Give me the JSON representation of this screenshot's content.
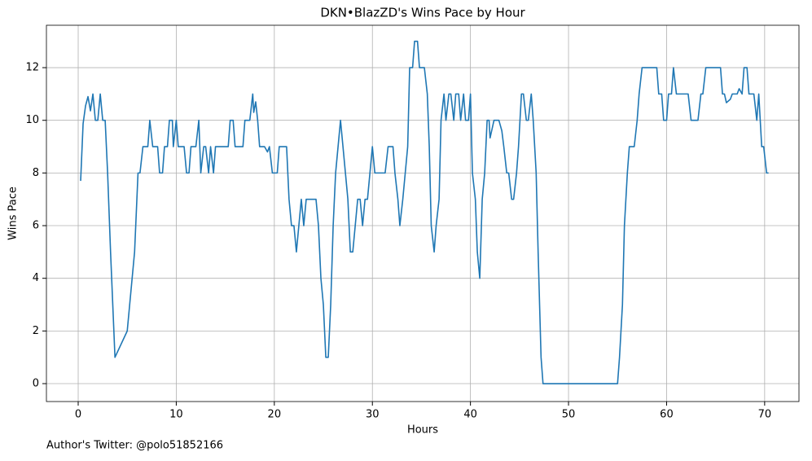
{
  "chart_data": {
    "type": "line",
    "title": "DKN•BlazZD's Wins Pace by Hour",
    "xlabel": "Hours",
    "ylabel": "Wins Pace",
    "footnote": "Author's Twitter: @polo51852166",
    "color": "#1f77b4",
    "grid": true,
    "xlim": [
      -3.24,
      73.5
    ],
    "ylim": [
      -0.68,
      13.61
    ],
    "xticks": [
      0,
      10,
      20,
      30,
      40,
      50,
      60,
      70
    ],
    "yticks": [
      0,
      2,
      4,
      6,
      8,
      10,
      12
    ],
    "x": [
      0.25,
      0.5,
      0.75,
      1.0,
      1.25,
      1.5,
      1.75,
      2.0,
      2.25,
      2.5,
      2.75,
      3.0,
      3.3,
      3.75,
      5.0,
      5.75,
      6.1,
      6.3,
      6.6,
      7.1,
      7.3,
      7.6,
      8.1,
      8.3,
      8.6,
      8.8,
      9.1,
      9.3,
      9.6,
      9.7,
      10.0,
      10.2,
      10.8,
      11.05,
      11.3,
      11.5,
      12.0,
      12.3,
      12.5,
      12.8,
      13.0,
      13.3,
      13.5,
      13.8,
      14.0,
      15.3,
      15.5,
      15.8,
      16.0,
      16.8,
      17.0,
      17.5,
      17.8,
      17.9,
      18.1,
      18.3,
      18.5,
      19.0,
      19.3,
      19.5,
      19.8,
      20.3,
      20.5,
      21.25,
      21.5,
      21.75,
      22.0,
      22.25,
      22.5,
      22.75,
      23.0,
      23.25,
      24.25,
      24.5,
      24.75,
      25.0,
      25.25,
      25.5,
      25.75,
      26.0,
      26.25,
      26.75,
      27.0,
      27.25,
      27.5,
      27.75,
      28.0,
      28.25,
      28.5,
      28.75,
      29.0,
      29.25,
      29.5,
      29.75,
      30.0,
      30.25,
      31.3,
      31.6,
      32.1,
      32.3,
      32.6,
      32.8,
      33.1,
      33.6,
      33.8,
      34.1,
      34.3,
      34.6,
      34.8,
      35.3,
      35.6,
      35.8,
      36.0,
      36.3,
      36.5,
      36.8,
      37.0,
      37.3,
      37.5,
      37.8,
      38.0,
      38.3,
      38.5,
      38.8,
      39.0,
      39.3,
      39.5,
      39.8,
      40.0,
      40.2,
      40.5,
      40.7,
      40.95,
      41.2,
      41.45,
      41.7,
      41.9,
      42.0,
      42.4,
      42.9,
      43.2,
      43.4,
      43.7,
      43.9,
      44.2,
      44.4,
      44.7,
      44.9,
      45.2,
      45.4,
      45.7,
      45.9,
      46.2,
      46.4,
      46.7,
      46.9,
      47.2,
      47.4,
      55.0,
      55.2,
      55.5,
      55.7,
      56.0,
      56.2,
      56.7,
      57.0,
      57.2,
      57.5,
      59.0,
      59.2,
      59.5,
      59.7,
      60.0,
      60.2,
      60.5,
      60.7,
      61.0,
      62.2,
      62.5,
      63.2,
      63.5,
      63.7,
      64.0,
      65.5,
      65.7,
      65.9,
      66.1,
      66.5,
      66.7,
      67.2,
      67.4,
      67.7,
      67.9,
      68.2,
      68.4,
      68.9,
      69.2,
      69.4,
      69.7,
      69.9,
      70.2,
      70.4
    ],
    "values": [
      7.7,
      9.87,
      10.55,
      10.9,
      10.36,
      11,
      10,
      10,
      11,
      10,
      10,
      8,
      5,
      1,
      2,
      5,
      8,
      8,
      9,
      9,
      10,
      9,
      9,
      8,
      8,
      9,
      9,
      10,
      10,
      9,
      10,
      9,
      9,
      8,
      8,
      9,
      9,
      10,
      8,
      9,
      9,
      8,
      9,
      8,
      9,
      9,
      10,
      10,
      9,
      9,
      10,
      10,
      11,
      10.3,
      10.7,
      10,
      9,
      9,
      8.8,
      9,
      8,
      8,
      9,
      9,
      7,
      6,
      6,
      5,
      6,
      7,
      6,
      7,
      7,
      6,
      4,
      3,
      1,
      1,
      3,
      6,
      8,
      10,
      9,
      8,
      7,
      5,
      5,
      6,
      7,
      7,
      6,
      7,
      7,
      8,
      9,
      8,
      8,
      9,
      9,
      8,
      7,
      6,
      7,
      9,
      12,
      12,
      13,
      13,
      12,
      12,
      11,
      9,
      6,
      5,
      6,
      7,
      10,
      11,
      10,
      11,
      11,
      10,
      11,
      11,
      10,
      11,
      10,
      10,
      11,
      8,
      7,
      5,
      4,
      7,
      8,
      10,
      10,
      9.33,
      10,
      10,
      9.6,
      9,
      8,
      8,
      7,
      7,
      8,
      9,
      11,
      11,
      10,
      10,
      11,
      10,
      8,
      5,
      1,
      0,
      0,
      1,
      3,
      6,
      8,
      9,
      9,
      10,
      11,
      12,
      12,
      11,
      11,
      10,
      10,
      11,
      11,
      12,
      11,
      11,
      10,
      10,
      11,
      11,
      12,
      12,
      11,
      11,
      10.67,
      10.8,
      11,
      11,
      11.2,
      11,
      12,
      12,
      11,
      11,
      10,
      11,
      9,
      9,
      8,
      8
    ]
  }
}
